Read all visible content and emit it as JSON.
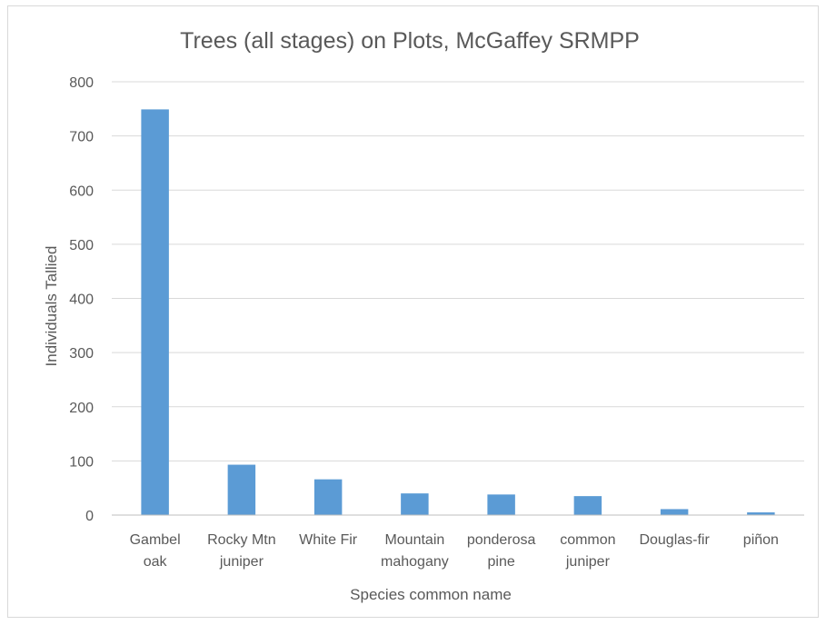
{
  "chart_data": {
    "type": "bar",
    "title": "Trees (all stages) on Plots, McGaffey SRMPP",
    "xlabel": "Species common name",
    "ylabel": "Individuals Tallied",
    "categories": [
      [
        "Gambel",
        "oak"
      ],
      [
        "Rocky Mtn",
        "juniper"
      ],
      [
        "White Fir"
      ],
      [
        "Mountain",
        "mahogany"
      ],
      [
        "ponderosa",
        "pine"
      ],
      [
        "common",
        "juniper"
      ],
      [
        "Douglas-fir"
      ],
      [
        "piñon"
      ]
    ],
    "values": [
      749,
      93,
      66,
      40,
      38,
      35,
      11,
      5
    ],
    "ylim": [
      0,
      800
    ],
    "yticks": [
      "0",
      "100",
      "200",
      "300",
      "400",
      "500",
      "600",
      "700",
      "800"
    ],
    "grid": true,
    "legend": "none",
    "bar_color": "#5b9bd5"
  }
}
